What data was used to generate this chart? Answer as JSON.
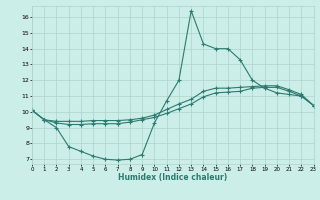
{
  "xlabel": "Humidex (Indice chaleur)",
  "xlim": [
    0,
    23
  ],
  "ylim": [
    6.7,
    16.7
  ],
  "xticks": [
    0,
    1,
    2,
    3,
    4,
    5,
    6,
    7,
    8,
    9,
    10,
    11,
    12,
    13,
    14,
    15,
    16,
    17,
    18,
    19,
    20,
    21,
    22,
    23
  ],
  "yticks": [
    7,
    8,
    9,
    10,
    11,
    12,
    13,
    14,
    15,
    16
  ],
  "line_color": "#2d7a70",
  "bg_color": "#cceee8",
  "grid_color": "#aad4cc",
  "line1_x": [
    0,
    1,
    2,
    3,
    4,
    5,
    6,
    7,
    8,
    9,
    10,
    11,
    12,
    13,
    14,
    15,
    16,
    17,
    18,
    19,
    20,
    21,
    22,
    23
  ],
  "line1_y": [
    10.1,
    9.5,
    9.0,
    7.8,
    7.5,
    7.2,
    7.0,
    6.95,
    7.0,
    7.3,
    9.3,
    10.7,
    12.0,
    16.4,
    14.3,
    14.0,
    14.0,
    13.3,
    12.0,
    11.5,
    11.2,
    11.1,
    11.0,
    10.4
  ],
  "line2_x": [
    0,
    1,
    2,
    3,
    4,
    5,
    6,
    7,
    8,
    9,
    10,
    11,
    12,
    13,
    14,
    15,
    16,
    17,
    18,
    19,
    20,
    21,
    22,
    23
  ],
  "line2_y": [
    10.1,
    9.5,
    9.4,
    9.4,
    9.4,
    9.45,
    9.45,
    9.45,
    9.5,
    9.6,
    9.8,
    10.15,
    10.5,
    10.8,
    11.3,
    11.5,
    11.5,
    11.55,
    11.6,
    11.65,
    11.65,
    11.4,
    11.1,
    10.4
  ],
  "line3_x": [
    0,
    1,
    2,
    3,
    4,
    5,
    6,
    7,
    8,
    9,
    10,
    11,
    12,
    13,
    14,
    15,
    16,
    17,
    18,
    19,
    20,
    21,
    22,
    23
  ],
  "line3_y": [
    10.1,
    9.5,
    9.3,
    9.2,
    9.2,
    9.25,
    9.25,
    9.25,
    9.35,
    9.5,
    9.65,
    9.9,
    10.2,
    10.5,
    10.95,
    11.2,
    11.25,
    11.3,
    11.5,
    11.55,
    11.55,
    11.3,
    11.0,
    10.4
  ]
}
